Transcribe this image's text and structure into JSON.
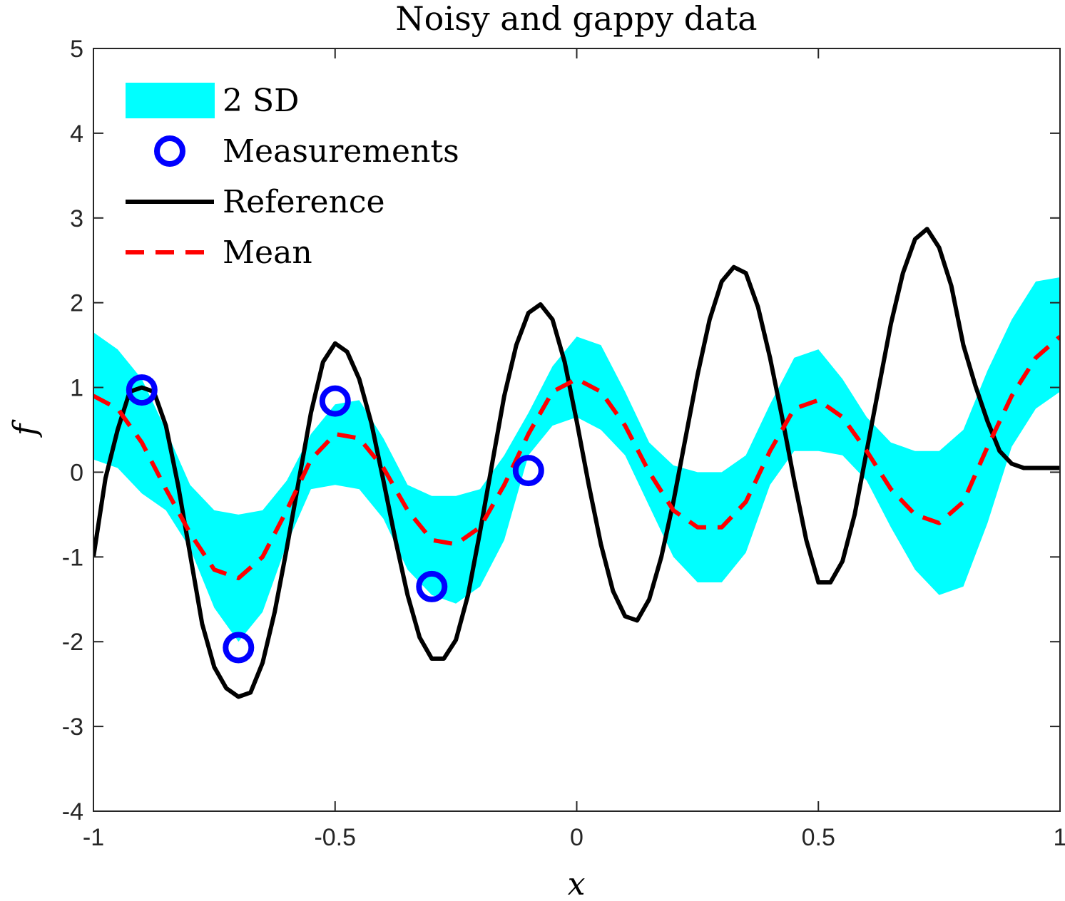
{
  "chart_data": {
    "type": "line",
    "title": "Noisy and gappy data",
    "xlabel": "x",
    "ylabel": "f",
    "xlim": [
      -1,
      1
    ],
    "ylim": [
      -4,
      5
    ],
    "xticks": [
      -1,
      -0.5,
      0,
      0.5,
      1
    ],
    "xtick_labels": [
      "-1",
      "-0.5",
      "0",
      "0.5",
      "1"
    ],
    "yticks": [
      -4,
      -3,
      -2,
      -1,
      0,
      1,
      2,
      3,
      4,
      5
    ],
    "ytick_labels": [
      "-4",
      "-3",
      "-2",
      "-1",
      "0",
      "1",
      "2",
      "3",
      "4",
      "5"
    ],
    "grid": false,
    "legend_position": "top-left",
    "legend": [
      {
        "label": "2 SD",
        "style": "band",
        "color": "#00FFFF"
      },
      {
        "label": "Measurements",
        "style": "marker",
        "color": "#0000FF"
      },
      {
        "label": "Reference",
        "style": "solid",
        "color": "#000000"
      },
      {
        "label": "Mean",
        "style": "dashed",
        "color": "#FF0000"
      }
    ],
    "band": {
      "name": "2 SD",
      "color": "#00FFFF",
      "x": [
        -1.0,
        -0.95,
        -0.9,
        -0.85,
        -0.8,
        -0.75,
        -0.7,
        -0.65,
        -0.6,
        -0.55,
        -0.5,
        -0.45,
        -0.4,
        -0.35,
        -0.3,
        -0.25,
        -0.2,
        -0.15,
        -0.1,
        -0.05,
        0.0,
        0.05,
        0.1,
        0.15,
        0.2,
        0.25,
        0.3,
        0.35,
        0.4,
        0.45,
        0.5,
        0.55,
        0.6,
        0.65,
        0.7,
        0.75,
        0.8,
        0.85,
        0.9,
        0.95,
        1.0
      ],
      "upper": [
        1.65,
        1.45,
        1.1,
        0.5,
        -0.15,
        -0.45,
        -0.5,
        -0.45,
        -0.1,
        0.45,
        0.8,
        0.85,
        0.4,
        -0.15,
        -0.28,
        -0.28,
        -0.2,
        0.2,
        0.7,
        1.25,
        1.6,
        1.5,
        0.95,
        0.35,
        0.08,
        0.0,
        0.0,
        0.2,
        0.8,
        1.35,
        1.45,
        1.1,
        0.65,
        0.35,
        0.25,
        0.25,
        0.5,
        1.2,
        1.8,
        2.25,
        2.3
      ],
      "lower": [
        0.15,
        0.05,
        -0.25,
        -0.45,
        -0.9,
        -1.6,
        -2.0,
        -1.65,
        -0.85,
        -0.2,
        -0.15,
        -0.2,
        -0.55,
        -1.15,
        -1.45,
        -1.55,
        -1.35,
        -0.8,
        0.2,
        0.55,
        0.65,
        0.5,
        0.2,
        -0.4,
        -1.0,
        -1.3,
        -1.3,
        -0.95,
        -0.15,
        0.25,
        0.25,
        0.2,
        -0.1,
        -0.65,
        -1.15,
        -1.45,
        -1.35,
        -0.6,
        0.3,
        0.75,
        0.95
      ]
    },
    "series": [
      {
        "name": "Reference",
        "color": "#000000",
        "style": "solid",
        "x": [
          -1.0,
          -0.975,
          -0.95,
          -0.925,
          -0.9,
          -0.875,
          -0.85,
          -0.825,
          -0.8,
          -0.775,
          -0.75,
          -0.725,
          -0.7,
          -0.675,
          -0.65,
          -0.625,
          -0.6,
          -0.575,
          -0.55,
          -0.525,
          -0.5,
          -0.475,
          -0.45,
          -0.425,
          -0.4,
          -0.375,
          -0.35,
          -0.325,
          -0.3,
          -0.275,
          -0.25,
          -0.225,
          -0.2,
          -0.175,
          -0.15,
          -0.125,
          -0.1,
          -0.075,
          -0.05,
          -0.025,
          0.0,
          0.025,
          0.05,
          0.075,
          0.1,
          0.125,
          0.15,
          0.175,
          0.2,
          0.225,
          0.25,
          0.275,
          0.3,
          0.325,
          0.35,
          0.375,
          0.4,
          0.425,
          0.45,
          0.475,
          0.5,
          0.525,
          0.55,
          0.575,
          0.6,
          0.625,
          0.65,
          0.675,
          0.7,
          0.725,
          0.75,
          0.775,
          0.8,
          0.825,
          0.85,
          0.875,
          0.9,
          0.925,
          0.95,
          0.975,
          1.0
        ],
        "values": [
          -1.0,
          -0.07,
          0.5,
          0.95,
          1.0,
          0.95,
          0.55,
          -0.15,
          -0.97,
          -1.79,
          -2.3,
          -2.55,
          -2.65,
          -2.6,
          -2.25,
          -1.65,
          -0.9,
          -0.1,
          0.7,
          1.3,
          1.52,
          1.42,
          1.1,
          0.58,
          -0.1,
          -0.8,
          -1.45,
          -1.95,
          -2.2,
          -2.2,
          -1.98,
          -1.45,
          -0.7,
          0.1,
          0.9,
          1.5,
          1.88,
          1.98,
          1.8,
          1.3,
          0.6,
          -0.15,
          -0.85,
          -1.4,
          -1.7,
          -1.75,
          -1.5,
          -1.0,
          -0.35,
          0.4,
          1.15,
          1.8,
          2.25,
          2.42,
          2.35,
          1.95,
          1.35,
          0.65,
          -0.1,
          -0.8,
          -1.3,
          -1.3,
          -1.05,
          -0.5,
          0.25,
          1.0,
          1.75,
          2.35,
          2.75,
          2.87,
          2.65,
          2.2,
          1.5,
          1.02,
          0.6,
          0.25,
          0.1,
          0.05,
          0.05,
          0.05,
          0.05
        ]
      },
      {
        "name": "Mean",
        "color": "#FF0000",
        "style": "dashed",
        "x": [
          -1.0,
          -0.95,
          -0.9,
          -0.85,
          -0.8,
          -0.75,
          -0.7,
          -0.65,
          -0.6,
          -0.55,
          -0.5,
          -0.45,
          -0.4,
          -0.35,
          -0.3,
          -0.25,
          -0.2,
          -0.15,
          -0.1,
          -0.05,
          0.0,
          0.05,
          0.1,
          0.15,
          0.2,
          0.25,
          0.3,
          0.35,
          0.4,
          0.45,
          0.5,
          0.55,
          0.6,
          0.65,
          0.7,
          0.75,
          0.8,
          0.85,
          0.9,
          0.95,
          1.0
        ],
        "values": [
          0.9,
          0.75,
          0.35,
          -0.2,
          -0.72,
          -1.15,
          -1.25,
          -1.0,
          -0.45,
          0.15,
          0.45,
          0.4,
          0.05,
          -0.45,
          -0.8,
          -0.85,
          -0.65,
          -0.15,
          0.45,
          0.95,
          1.1,
          0.95,
          0.55,
          0.0,
          -0.45,
          -0.65,
          -0.65,
          -0.35,
          0.25,
          0.75,
          0.85,
          0.65,
          0.25,
          -0.2,
          -0.5,
          -0.6,
          -0.35,
          0.3,
          0.9,
          1.35,
          1.6
        ]
      }
    ],
    "measurements": {
      "name": "Measurements",
      "color": "#0000FF",
      "x": [
        -0.9,
        -0.7,
        -0.5,
        -0.3,
        -0.1
      ],
      "values": [
        0.97,
        -2.07,
        0.84,
        -1.35,
        0.02
      ]
    }
  }
}
